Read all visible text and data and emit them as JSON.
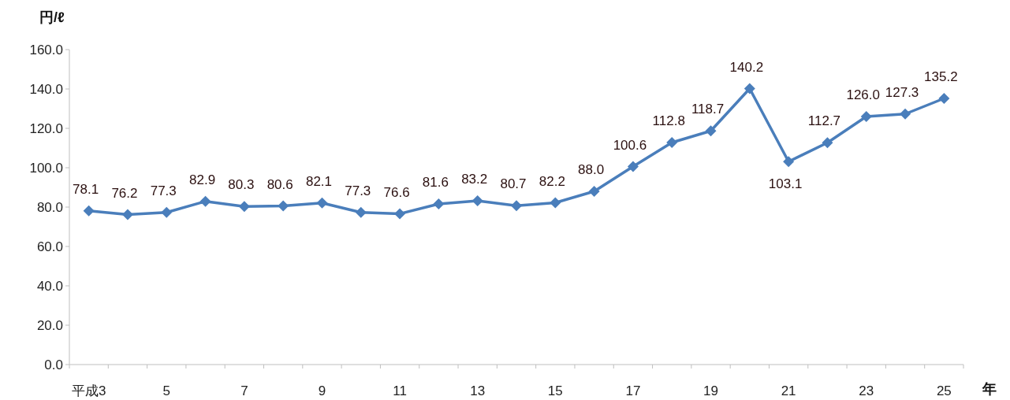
{
  "chart_data": {
    "type": "line",
    "ylabel": "円/ℓ",
    "xlabel": "年",
    "categories": [
      "平成3",
      null,
      "5",
      null,
      "7",
      null,
      "9",
      null,
      "11",
      null,
      "13",
      null,
      "15",
      null,
      "17",
      null,
      "19",
      null,
      "21",
      null,
      "23",
      null,
      "25"
    ],
    "series": [
      {
        "color": "#4a7ebb",
        "values": [
          78.1,
          76.2,
          77.3,
          82.9,
          80.3,
          80.6,
          82.1,
          77.3,
          76.6,
          81.6,
          83.2,
          80.7,
          82.2,
          88.0,
          100.6,
          112.8,
          118.7,
          140.2,
          103.1,
          112.7,
          126.0,
          127.3,
          135.2
        ],
        "value_labels": [
          "78.1",
          "76.2",
          "77.3",
          "82.9",
          "80.3",
          "80.6",
          "82.1",
          "77.3",
          "76.6",
          "81.6",
          "83.2",
          "80.7",
          "82.2",
          "88.0",
          "100.6",
          "112.8",
          "118.7",
          "140.2",
          "103.1",
          "112.7",
          "126.0",
          "127.3",
          "135.2"
        ]
      }
    ],
    "ylim": [
      0,
      160
    ],
    "yticks": [
      {
        "value": 0,
        "label": "0.0"
      },
      {
        "value": 20,
        "label": "20.0"
      },
      {
        "value": 40,
        "label": "40.0"
      },
      {
        "value": 60,
        "label": "60.0"
      },
      {
        "value": 80,
        "label": "80.0"
      },
      {
        "value": 100,
        "label": "100.0"
      },
      {
        "value": 120,
        "label": "120.0"
      },
      {
        "value": 140,
        "label": "140.0"
      },
      {
        "value": 160,
        "label": "160.0"
      }
    ],
    "marker": "diamond",
    "line_style": "solid",
    "grid": false
  }
}
